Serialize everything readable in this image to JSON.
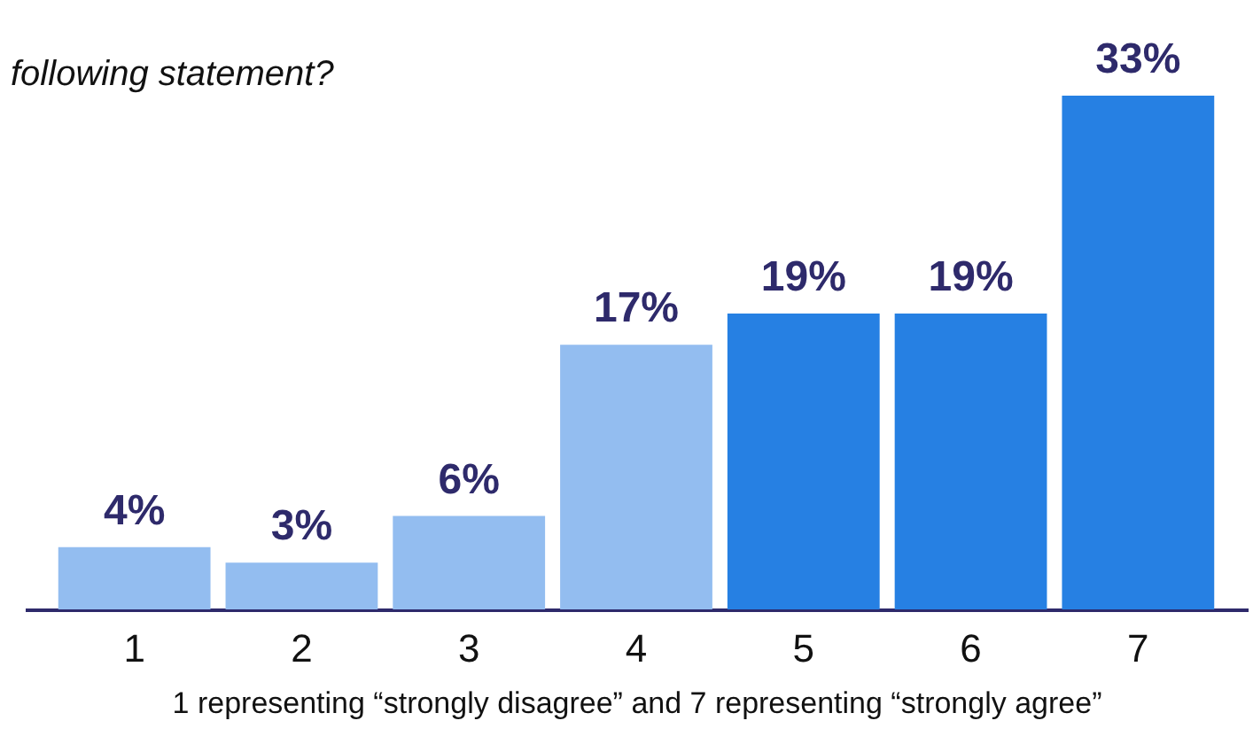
{
  "chart_data": {
    "type": "bar",
    "title": "following statement?",
    "xlabel": "1 representing “strongly disagree” and 7 representing “strongly agree”",
    "categories": [
      "1",
      "2",
      "3",
      "4",
      "5",
      "6",
      "7"
    ],
    "values": [
      4,
      3,
      6,
      17,
      19,
      19,
      33
    ],
    "value_labels": [
      "4%",
      "3%",
      "6%",
      "17%",
      "19%",
      "19%",
      "33%"
    ],
    "colors": [
      "#93bdf0",
      "#93bdf0",
      "#93bdf0",
      "#93bdf0",
      "#2680e3",
      "#2680e3",
      "#2680e3"
    ]
  }
}
